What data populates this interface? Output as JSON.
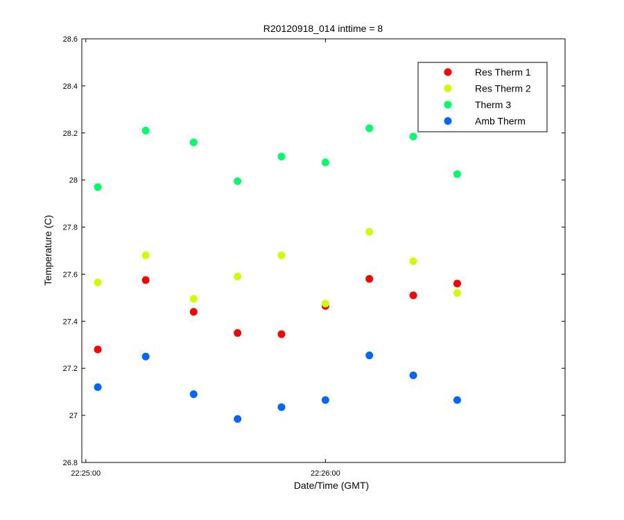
{
  "chart_data": {
    "type": "scatter",
    "title": "R20120918_014 inttime = 8",
    "xlabel": "Date/Time (GMT)",
    "ylabel": "Temperature (C)",
    "xlim": [
      "22:24:59",
      "22:27:00"
    ],
    "ylim": [
      26.8,
      28.6
    ],
    "x_ticks": [
      "22:25:00",
      "22:26:00"
    ],
    "y_ticks": [
      "26.8",
      "27",
      "27.2",
      "27.4",
      "27.6",
      "27.8",
      "28",
      "28.2",
      "28.4",
      "28.6"
    ],
    "x": [
      "22:25:03",
      "22:25:15",
      "22:25:27",
      "22:25:38",
      "22:25:49",
      "22:26:00",
      "22:26:11",
      "22:26:22",
      "22:26:33"
    ],
    "legend_position": "top-right",
    "grid": false,
    "series": [
      {
        "name": "Res Therm 1",
        "color": "#ff0000",
        "values": [
          27.28,
          27.575,
          27.44,
          27.35,
          27.345,
          27.465,
          27.58,
          27.51,
          27.56
        ]
      },
      {
        "name": "Res Therm 2",
        "color": "#ccff00",
        "values": [
          27.565,
          27.68,
          27.495,
          27.59,
          27.68,
          27.475,
          27.78,
          27.655,
          27.52
        ]
      },
      {
        "name": "Therm 3",
        "color": "#00ff66",
        "values": [
          27.97,
          28.21,
          28.16,
          27.995,
          28.1,
          28.075,
          28.22,
          28.185,
          28.025
        ]
      },
      {
        "name": "Amb Therm",
        "color": "#0066ff",
        "values": [
          27.12,
          27.25,
          27.09,
          26.985,
          27.035,
          27.065,
          27.255,
          27.17,
          27.065
        ]
      }
    ]
  }
}
